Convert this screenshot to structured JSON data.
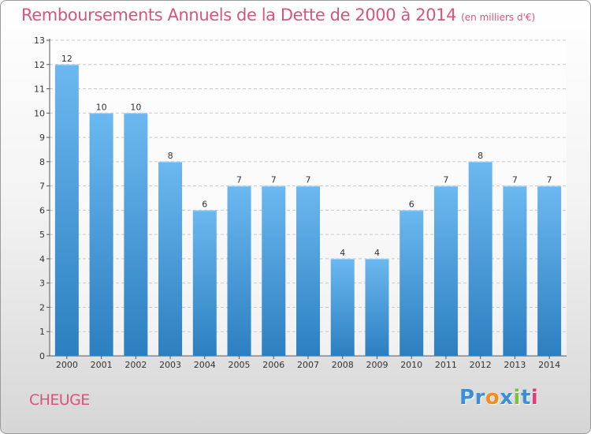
{
  "header": {
    "title": "Remboursements Annuels de la Dette de 2000 à 2014",
    "subtitle": "(en milliers d'€)"
  },
  "commune": "CHEUGE",
  "logo": {
    "text": "Proxiti",
    "letters": [
      "P",
      "r",
      "o",
      "x",
      "i",
      "t",
      "i"
    ],
    "colors": [
      "#3a8fd6",
      "#3a8fd6",
      "#f28c1c",
      "#3a8fd6",
      "#7bc043",
      "#3a8fd6",
      "#e23a7b"
    ]
  },
  "colors": {
    "bar_light": "#6cb8f0",
    "bar_dark": "#2c7fc0",
    "title": "#d8547c",
    "grid": "#c8c8c8"
  },
  "chart_data": {
    "type": "bar",
    "title": "Remboursements Annuels de la Dette de 2000 à 2014",
    "subtitle": "(en milliers d'€)",
    "categories": [
      "2000",
      "2001",
      "2002",
      "2003",
      "2004",
      "2005",
      "2006",
      "2007",
      "2008",
      "2009",
      "2010",
      "2011",
      "2012",
      "2013",
      "2014"
    ],
    "values": [
      12,
      10,
      10,
      8,
      6,
      7,
      7,
      7,
      4,
      4,
      6,
      7,
      8,
      7,
      7
    ],
    "ylim": [
      0,
      13
    ],
    "yticks": [
      0,
      1,
      2,
      3,
      4,
      5,
      6,
      7,
      8,
      9,
      10,
      11,
      12,
      13
    ],
    "xlabel": "",
    "ylabel": "",
    "grid": true
  }
}
